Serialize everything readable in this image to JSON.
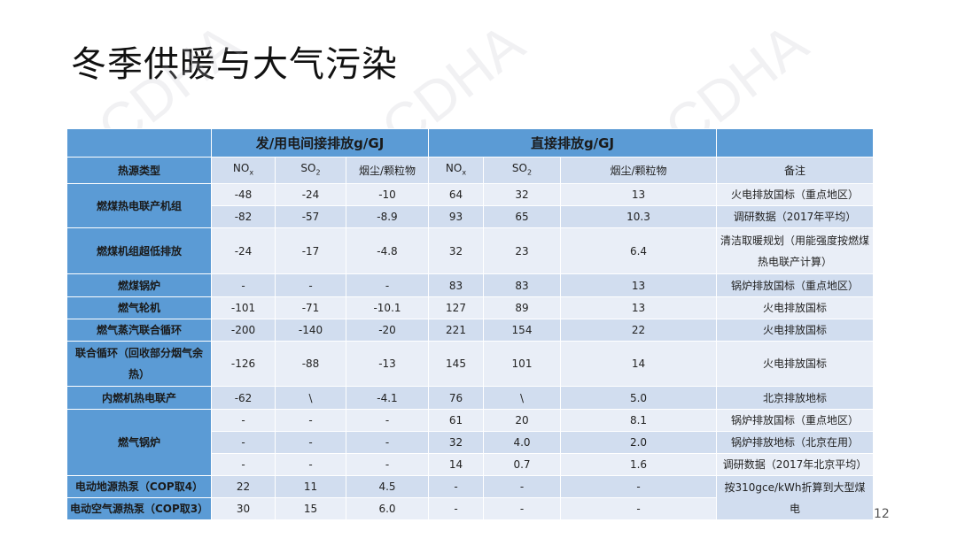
{
  "title": "冬季供暖与大气污染",
  "watermark": "CDHA",
  "page_number": "12",
  "colors": {
    "header": "#5b9bd5",
    "row_dark": "#d1ddef",
    "row_light": "#e9eef7"
  },
  "table": {
    "group_headers": [
      "",
      "发/用电间接排放g/GJ",
      "直接排放g/GJ",
      ""
    ],
    "columns": [
      {
        "text": "热源类型"
      },
      {
        "base": "NO",
        "sub": "x"
      },
      {
        "base": "SO",
        "sub": "2"
      },
      {
        "text": "烟尘/颗粒物"
      },
      {
        "base": "NO",
        "sub": "x"
      },
      {
        "base": "SO",
        "sub": "2"
      },
      {
        "text": "烟尘/颗粒物"
      },
      {
        "text": "备注"
      }
    ],
    "rows": [
      [
        "燃煤热电联产机组",
        "-48",
        "-24",
        "-10",
        "64",
        "32",
        "13",
        "火电排放国标（重点地区）"
      ],
      [
        null,
        "-82",
        "-57",
        "-8.9",
        "93",
        "65",
        "10.3",
        "调研数据（2017年平均）"
      ],
      [
        "燃煤机组超低排放",
        "-24",
        "-17",
        "-4.8",
        "32",
        "23",
        "6.4",
        "清洁取暖规划（用能强度按燃煤热电联产计算）"
      ],
      [
        "燃煤锅炉",
        "-",
        "-",
        "-",
        "83",
        "83",
        "13",
        "锅炉排放国标（重点地区）"
      ],
      [
        "燃气轮机",
        "-101",
        "-71",
        "-10.1",
        "127",
        "89",
        "13",
        "火电排放国标"
      ],
      [
        "燃气蒸汽联合循环",
        "-200",
        "-140",
        "-20",
        "221",
        "154",
        "22",
        "火电排放国标"
      ],
      [
        "联合循环（回收部分烟气余热）",
        "-126",
        "-88",
        "-13",
        "145",
        "101",
        "14",
        "火电排放国标"
      ],
      [
        "内燃机热电联产",
        "-62",
        "\\",
        "-4.1",
        "76",
        "\\",
        "5.0",
        "北京排放地标"
      ],
      [
        "燃气锅炉",
        "-",
        "-",
        "-",
        "61",
        "20",
        "8.1",
        "锅炉排放国标（重点地区）"
      ],
      [
        null,
        "-",
        "-",
        "-",
        "32",
        "4.0",
        "2.0",
        "锅炉排放地标（北京在用）"
      ],
      [
        null,
        "-",
        "-",
        "-",
        "14",
        "0.7",
        "1.6",
        "调研数据（2017年北京平均）"
      ],
      [
        "电动地源热泵（COP取4）",
        "22",
        "11",
        "4.5",
        "-",
        "-",
        "-",
        "按310gce/kWh折算到大型煤电"
      ],
      [
        "电动空气源热泵（COP取3）",
        "30",
        "15",
        "6.0",
        "-",
        "-",
        "-",
        null
      ]
    ]
  }
}
